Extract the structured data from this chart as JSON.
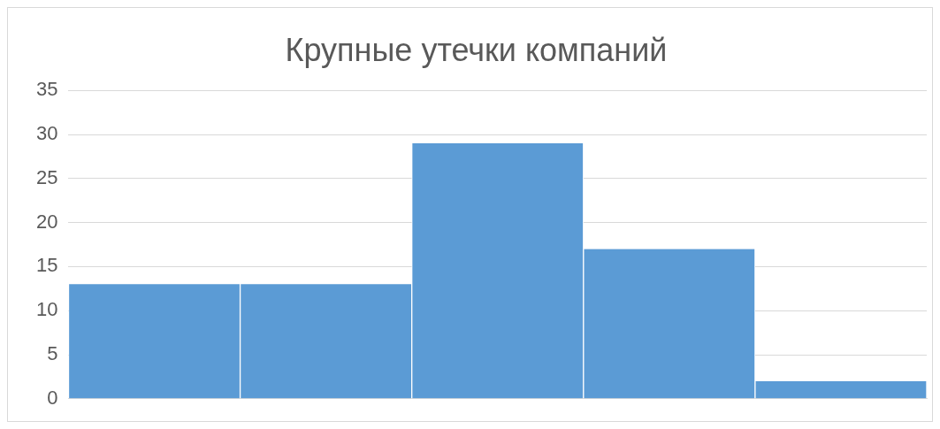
{
  "chart_data": {
    "type": "bar",
    "title": "Крупные утечки компаний",
    "categories": [
      null,
      null,
      null,
      null,
      null
    ],
    "values": [
      13,
      13,
      29,
      17,
      2
    ],
    "color": "#5b9bd5",
    "ylim": [
      0,
      35
    ],
    "yticks": [
      0,
      5,
      10,
      15,
      20,
      25,
      30,
      35
    ],
    "grid": "y"
  }
}
